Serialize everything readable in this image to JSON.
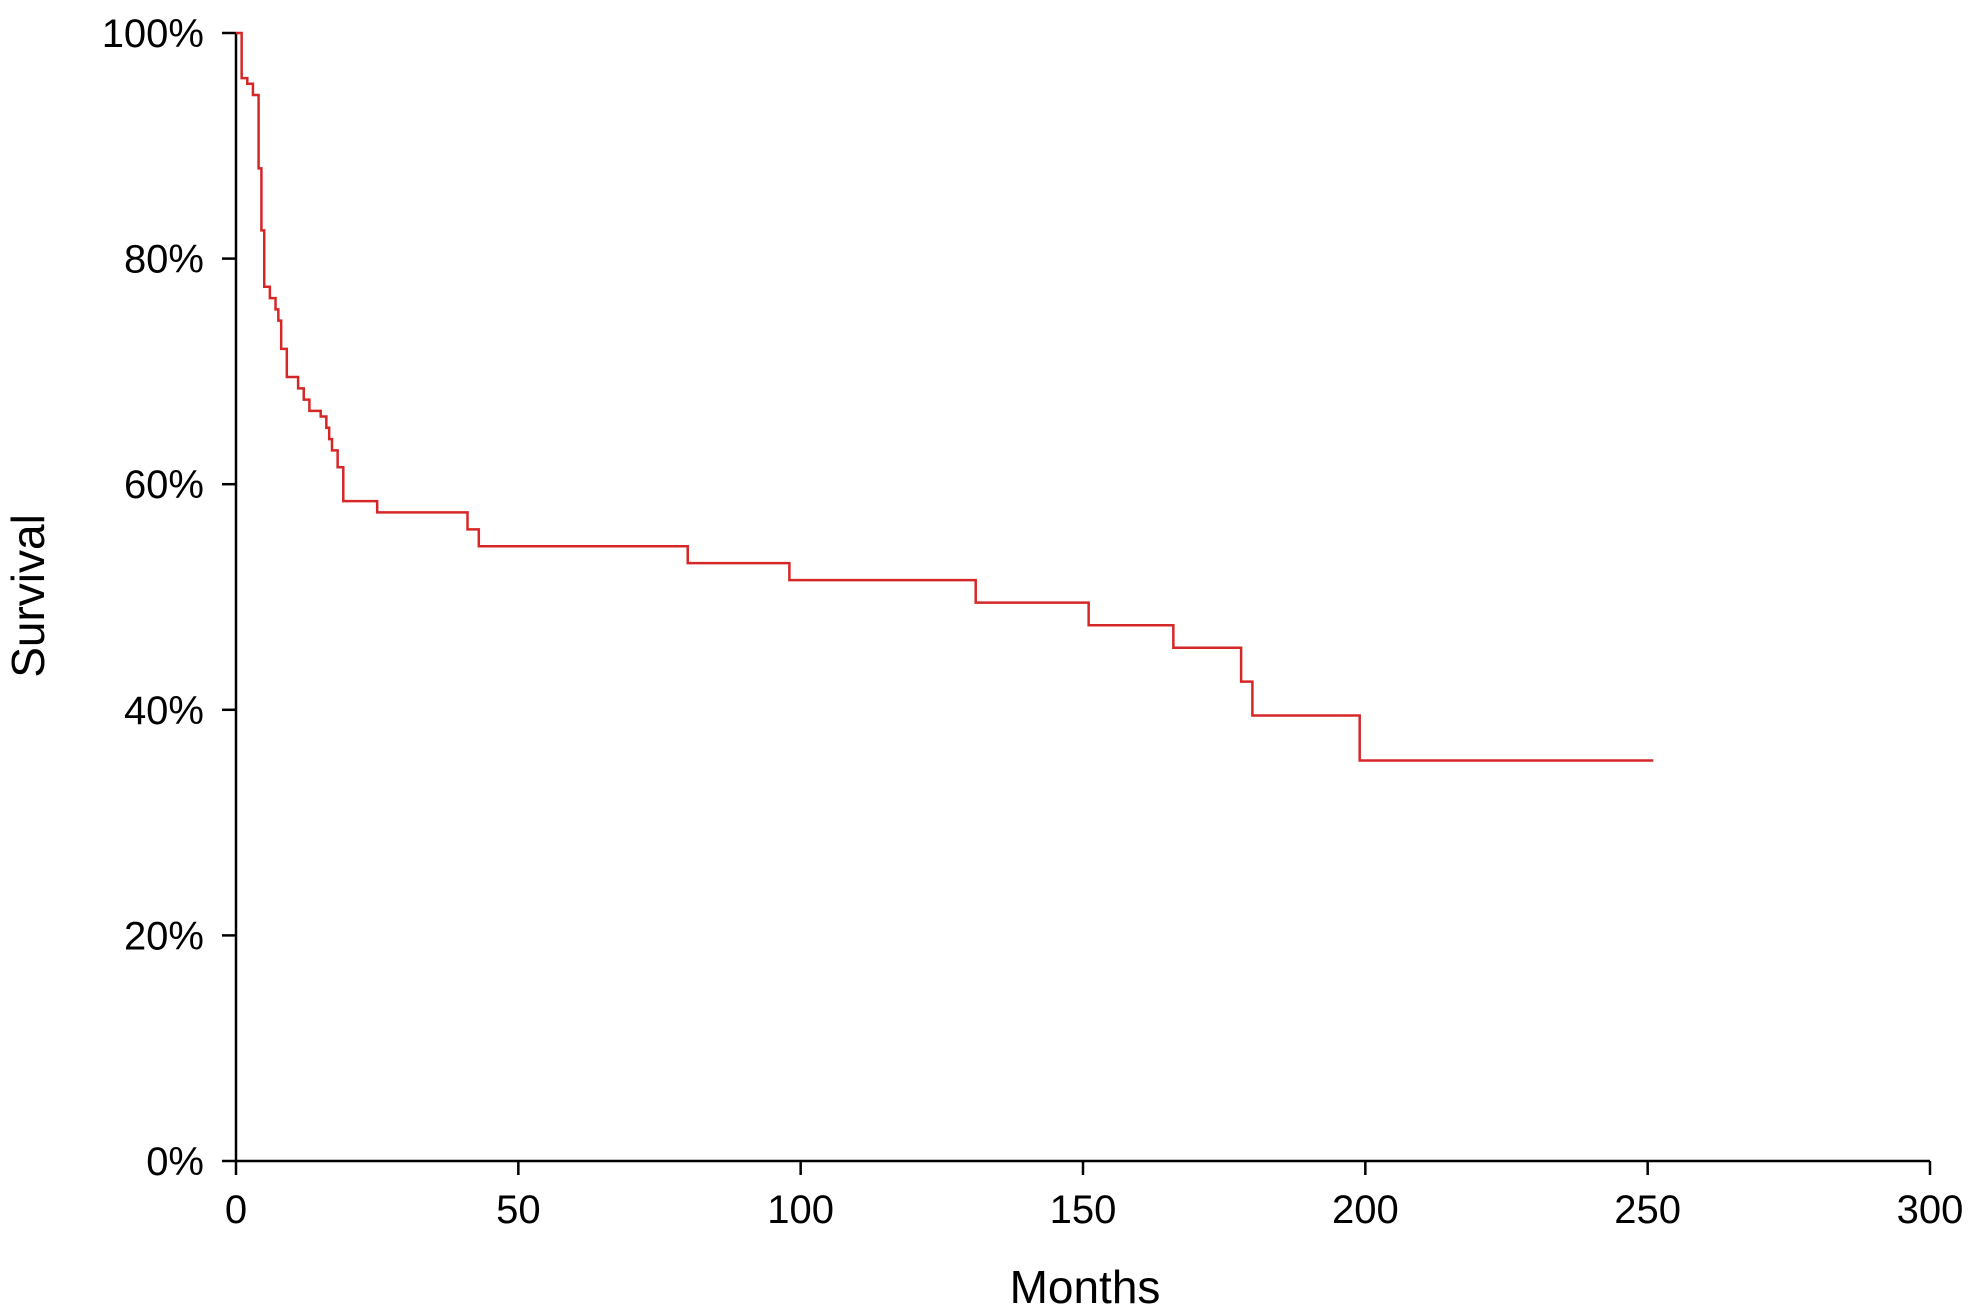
{
  "chart_data": {
    "type": "line",
    "step": true,
    "title": "",
    "xlabel": "Months",
    "ylabel": "Survival",
    "xlim": [
      0,
      300
    ],
    "ylim": [
      0,
      100
    ],
    "xticks": [
      0,
      50,
      100,
      150,
      200,
      250,
      300
    ],
    "xtick_labels": [
      "0",
      "50",
      "100",
      "150",
      "200",
      "250",
      "300"
    ],
    "yticks": [
      0,
      20,
      40,
      60,
      80,
      100
    ],
    "ytick_labels": [
      "0%",
      "20%",
      "40%",
      "60%",
      "80%",
      "100%"
    ],
    "grid": false,
    "legend": "none",
    "series": [
      {
        "color": "#d62728",
        "x": [
          0,
          1,
          2,
          3,
          4,
          4.5,
          5,
          6,
          7,
          7.5,
          8,
          9,
          11,
          12,
          13,
          15,
          16,
          16.5,
          17,
          18,
          19,
          20,
          25,
          41,
          43,
          80,
          98,
          131,
          151,
          166,
          178,
          180,
          199,
          251
        ],
        "y": [
          100,
          96,
          95.5,
          94.5,
          88,
          82.5,
          77.5,
          76.5,
          75.5,
          74.5,
          72,
          69.5,
          68.5,
          67.5,
          66.5,
          66,
          65,
          64,
          63,
          61.5,
          58.5,
          58.5,
          57.5,
          56,
          54.5,
          53,
          51.5,
          49.5,
          47.5,
          45.5,
          42.5,
          39.5,
          35.5,
          35.5
        ]
      }
    ]
  }
}
